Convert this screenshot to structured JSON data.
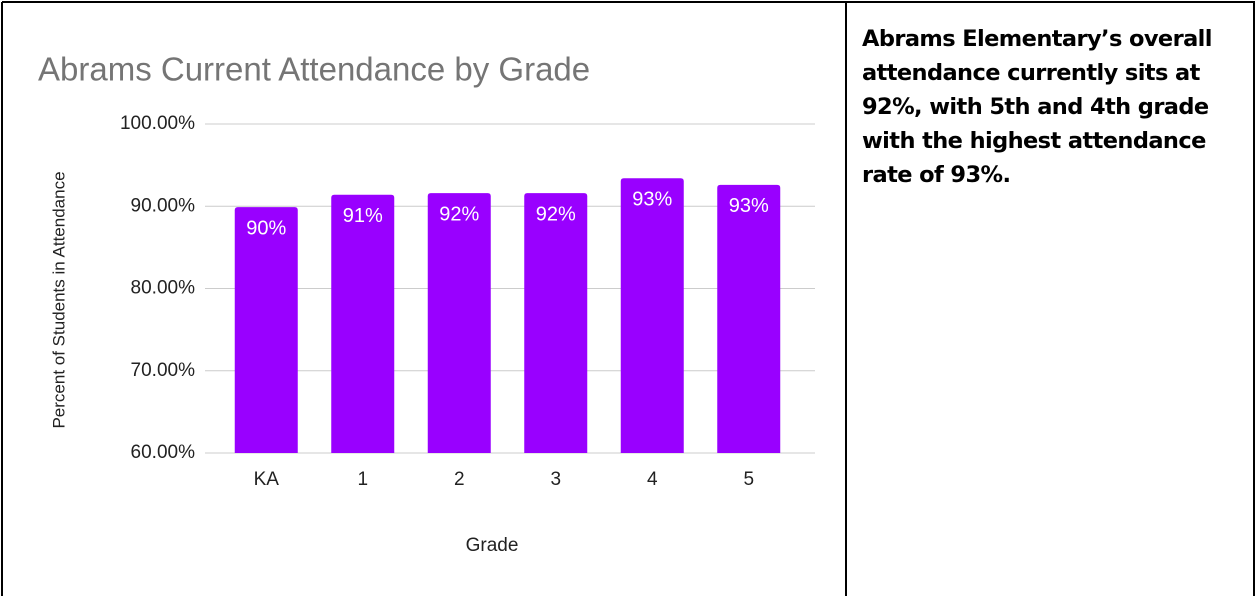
{
  "chart_data": {
    "type": "bar",
    "title": "Abrams Current Attendance by Grade",
    "x_label": "Grade",
    "y_label": "Percent of Students in Attendance",
    "categories": [
      "KA",
      "1",
      "2",
      "3",
      "4",
      "5"
    ],
    "values": [
      89.9,
      91.4,
      91.6,
      91.6,
      93.4,
      92.6
    ],
    "value_labels": [
      "90%",
      "91%",
      "92%",
      "92%",
      "93%",
      "93%"
    ],
    "color": "#9900ff",
    "ylim": [
      60,
      100
    ],
    "yticks": [
      {
        "value": 60,
        "label": "60.00%"
      },
      {
        "value": 70,
        "label": "70.00%"
      },
      {
        "value": 80,
        "label": "80.00%"
      },
      {
        "value": 90,
        "label": "90.00%"
      },
      {
        "value": 100,
        "label": "100.00%"
      }
    ],
    "grid": true
  },
  "note": "Abrams Elementary’s overall attendance currently sits at 92%, with 5th and 4th grade with the highest attendance rate of 93%."
}
